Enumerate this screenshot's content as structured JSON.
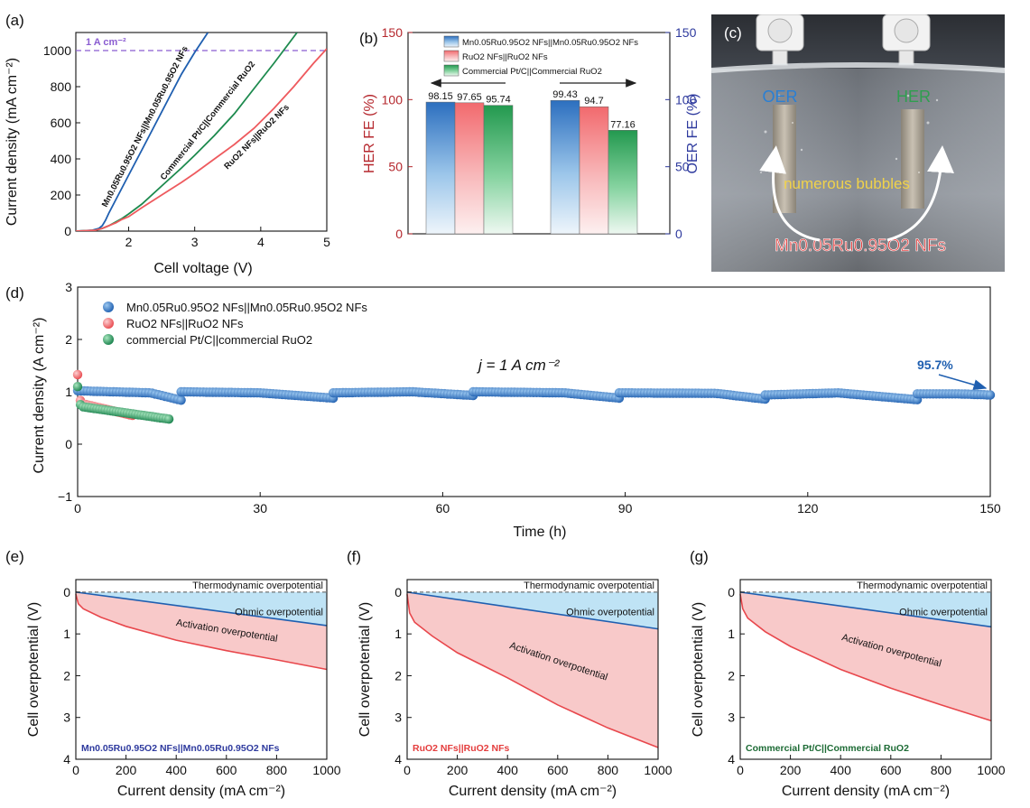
{
  "colors": {
    "mn": "#1f5fb0",
    "mn_light": "#7fb6e8",
    "ruo2": "#ee5a5e",
    "ruo2_light": "#f7a3a6",
    "pt": "#1d8a4e",
    "pt_light": "#6cc98c",
    "her_axis": "#b5272d",
    "oer_axis": "#2e3a9e",
    "ref_line": "#8a5cd1",
    "ohmic_fill": "#bfe3f5",
    "act_fill": "#f8c9c9"
  },
  "chart_data": [
    {
      "id": "a",
      "type": "line",
      "panel_label": "(a)",
      "xlabel": "Cell voltage (V)",
      "ylabel": "Current density (mA cm⁻²)",
      "xlim": [
        1.2,
        5.0
      ],
      "ylim": [
        0,
        1100
      ],
      "xticks": [
        2,
        3,
        4,
        5
      ],
      "yticks": [
        0,
        200,
        400,
        600,
        800,
        1000
      ],
      "ref_line": {
        "y": 1000,
        "label": "1 A cm⁻²"
      },
      "series": [
        {
          "name": "Mn0.05Ru0.95O2 NFs||Mn0.05Ru0.95O2 NFs",
          "label_text": "Mn0.05Ru0.95O2 NFs||Mn0.05Ru0.95O2 NFs",
          "color": "#1f5fb0",
          "x": [
            1.2,
            1.45,
            1.55,
            1.6,
            1.65,
            1.7,
            1.8,
            1.9,
            2.0,
            2.2,
            2.4,
            2.6,
            2.8,
            3.0,
            3.2
          ],
          "y": [
            0,
            5,
            15,
            30,
            60,
            100,
            170,
            240,
            310,
            450,
            590,
            730,
            870,
            990,
            1100
          ]
        },
        {
          "name": "Commercial Pt/C||Commercial RuO2",
          "label_text": "Commercial Pt/C||Commercial RuO2",
          "color": "#1d8a4e",
          "x": [
            1.2,
            1.5,
            1.6,
            1.7,
            1.8,
            1.9,
            2.0,
            2.2,
            2.5,
            2.8,
            3.0,
            3.3,
            3.6,
            3.9,
            4.2,
            4.55
          ],
          "y": [
            0,
            5,
            15,
            30,
            50,
            70,
            95,
            150,
            250,
            350,
            420,
            530,
            650,
            790,
            930,
            1100
          ]
        },
        {
          "name": "RuO2 NFs||RuO2 NFs",
          "label_text": "RuO2 NFs||RuO2 NFs",
          "color": "#ee5a5e",
          "x": [
            1.2,
            1.5,
            1.6,
            1.7,
            1.8,
            1.9,
            2.0,
            2.2,
            2.5,
            2.8,
            3.0,
            3.3,
            3.6,
            3.9,
            4.2,
            4.5,
            4.8,
            5.0
          ],
          "y": [
            0,
            5,
            15,
            30,
            45,
            65,
            80,
            130,
            200,
            270,
            320,
            400,
            480,
            570,
            680,
            800,
            930,
            1010
          ]
        }
      ]
    },
    {
      "id": "b",
      "type": "bar",
      "panel_label": "(b)",
      "ylabel_left": "HER FE (%)",
      "ylabel_right": "OER FE (%)",
      "ylim": [
        0,
        150
      ],
      "yticks": [
        0,
        50,
        100,
        150
      ],
      "groups": [
        "HER",
        "OER"
      ],
      "series": [
        {
          "name": "Mn0.05Ru0.95O2 NFs||Mn0.05Ru0.95O2 NFs",
          "values": [
            98.15,
            99.43
          ]
        },
        {
          "name": "RuO2 NFs||RuO2 NFs",
          "values": [
            97.65,
            94.7
          ]
        },
        {
          "name": "Commercial Pt/C||Commercial RuO2",
          "values": [
            95.74,
            77.16
          ]
        }
      ],
      "value_labels": [
        [
          "98.15",
          "97.65",
          "95.74"
        ],
        [
          "99.43",
          "94.7",
          "77.16"
        ]
      ]
    },
    {
      "id": "d",
      "type": "scatter",
      "panel_label": "(d)",
      "xlabel": "Time (h)",
      "ylabel": "Current density (A cm⁻²)",
      "xlim": [
        0,
        150
      ],
      "ylim": [
        -1,
        3
      ],
      "xticks": [
        0,
        30,
        60,
        90,
        120,
        150
      ],
      "yticks": [
        -1,
        0,
        1,
        2,
        3
      ],
      "annotation": "j = 1 A cm⁻²",
      "retention_label": "95.7%",
      "series": [
        {
          "name": "Mn0.05Ru0.95O2 NFs||Mn0.05Ru0.95O2 NFs",
          "segments": [
            [
              0,
              1.02,
              12,
              0.98,
              17,
              0.84
            ],
            [
              17,
              1.0,
              30,
              0.98,
              42,
              0.88
            ],
            [
              42,
              0.98,
              55,
              1.0,
              65,
              0.93
            ],
            [
              65,
              1.0,
              80,
              0.98,
              89,
              0.88
            ],
            [
              89,
              0.98,
              105,
              0.97,
              113,
              0.86
            ],
            [
              113,
              0.94,
              125,
              0.98,
              138,
              0.85
            ],
            [
              138,
              0.96,
              145,
              0.96,
              150,
              0.94
            ]
          ]
        },
        {
          "name": "RuO2 NFs||RuO2 NFs",
          "segments": [
            [
              0,
              1.33,
              0.5,
              0.78,
              9,
              0.55
            ]
          ]
        },
        {
          "name": "commercial Pt/C||commercial RuO2",
          "segments": [
            [
              0,
              1.1,
              0.5,
              0.72,
              15,
              0.48
            ]
          ]
        }
      ]
    },
    {
      "id": "e",
      "type": "area",
      "panel_label": "(e)",
      "caption": "Mn0.05Ru0.95O2 NFs||Mn0.05Ru0.95O2 NFs",
      "xlabel": "Current density (mA cm⁻²)",
      "ylabel": "Cell overpotential (V)",
      "xlim": [
        0,
        1000
      ],
      "ylim": [
        0,
        4
      ],
      "y_inverted": true,
      "xticks": [
        0,
        200,
        400,
        600,
        800,
        1000
      ],
      "yticks": [
        0,
        1,
        2,
        3,
        4
      ],
      "regions": [
        "Thermodynamic overpotential",
        "Ohmic overpotential",
        "Activation overpotential"
      ],
      "ohmic": {
        "x": [
          0,
          1000
        ],
        "y": [
          0,
          0.8
        ]
      },
      "total": {
        "x": [
          0,
          10,
          30,
          100,
          200,
          400,
          600,
          800,
          1000
        ],
        "y": [
          0.05,
          0.28,
          0.4,
          0.6,
          0.82,
          1.15,
          1.4,
          1.62,
          1.85
        ]
      }
    },
    {
      "id": "f",
      "type": "area",
      "panel_label": "(f)",
      "caption": "RuO2 NFs||RuO2 NFs",
      "xlabel": "Current density (mA cm⁻²)",
      "ylabel": "Cell overpotential (V)",
      "xlim": [
        0,
        1000
      ],
      "ylim": [
        0,
        4
      ],
      "y_inverted": true,
      "xticks": [
        0,
        200,
        400,
        600,
        800,
        1000
      ],
      "yticks": [
        0,
        1,
        2,
        3,
        4
      ],
      "regions": [
        "Thermodynamic overpotential",
        "Ohmic overpotential",
        "Activation overpotential"
      ],
      "ohmic": {
        "x": [
          0,
          1000
        ],
        "y": [
          0,
          0.88
        ]
      },
      "total": {
        "x": [
          0,
          10,
          30,
          100,
          200,
          300,
          400,
          600,
          800,
          1000
        ],
        "y": [
          0.05,
          0.5,
          0.72,
          1.05,
          1.45,
          1.75,
          2.05,
          2.7,
          3.25,
          3.72
        ]
      }
    },
    {
      "id": "g",
      "type": "area",
      "panel_label": "(g)",
      "caption": "Commercial Pt/C||Commercial RuO2",
      "xlabel": "Current density (mA cm⁻²)",
      "ylabel": "Cell overpotential (V)",
      "xlim": [
        0,
        1000
      ],
      "ylim": [
        0,
        4
      ],
      "y_inverted": true,
      "xticks": [
        0,
        200,
        400,
        600,
        800,
        1000
      ],
      "yticks": [
        0,
        1,
        2,
        3,
        4
      ],
      "regions": [
        "Thermodynamic overpotential",
        "Ohmic overpotential",
        "Activation overpotential"
      ],
      "ohmic": {
        "x": [
          0,
          1000
        ],
        "y": [
          0,
          0.83
        ]
      },
      "total": {
        "x": [
          0,
          10,
          30,
          100,
          200,
          400,
          600,
          800,
          1000
        ],
        "y": [
          0.05,
          0.4,
          0.62,
          0.95,
          1.3,
          1.85,
          2.3,
          2.7,
          3.08
        ]
      }
    }
  ],
  "photo": {
    "label": "(c)",
    "oer_label": "OER",
    "her_label": "HER",
    "bubbles_label": "numerous bubbles",
    "catalyst_label": "Mn0.05Ru0.95O2 NFs"
  }
}
